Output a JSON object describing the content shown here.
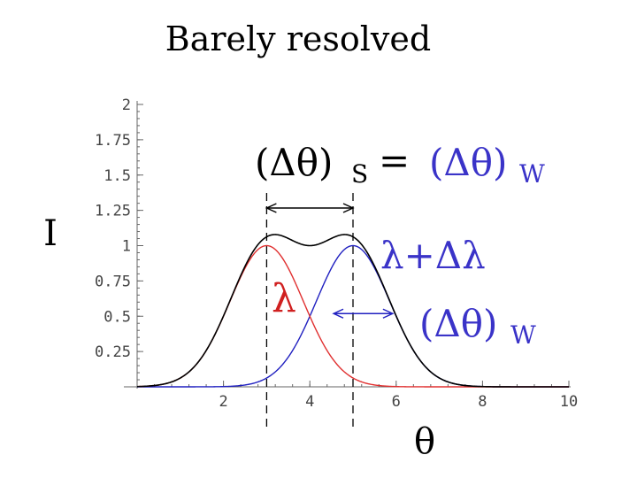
{
  "chart_data": {
    "type": "line",
    "title": "Barely resolved",
    "xlabel": "θ",
    "ylabel": "I",
    "xlim": [
      0,
      10
    ],
    "ylim": [
      0,
      2
    ],
    "x_ticks": [
      2,
      4,
      6,
      8,
      10
    ],
    "y_ticks": [
      0.25,
      0.5,
      0.75,
      1,
      1.25,
      1.5,
      1.75,
      2
    ],
    "y_tick_labels": [
      "0.25",
      "0.5",
      "0.75",
      "1",
      "1.25",
      "1.5",
      "1.75",
      "2"
    ],
    "x_tick_labels": [
      "2",
      "4",
      "6",
      "8",
      "10"
    ],
    "series": [
      {
        "label": "λ",
        "kind": "gaussian",
        "center": 3,
        "peak": 1,
        "half_width_at_half_max": 1
      },
      {
        "label": "λ+Δλ",
        "kind": "gaussian",
        "center": 5,
        "peak": 1,
        "half_width_at_half_max": 1
      },
      {
        "kind": "sum"
      }
    ],
    "dashed_verticals": [
      3,
      5
    ],
    "annotations": {
      "separation_left": "(Δθ)",
      "separation_sub": "S",
      "equals": "=",
      "separation_right": "(Δθ)",
      "separation_right_sub": "W",
      "width_label": "(Δθ)",
      "width_sub": "W"
    },
    "colors": {
      "series1": "#e03030",
      "series2": "#2020c0",
      "sum": "#000000",
      "annotation_blue": "#3a33c8",
      "annotation_red": "#d02020",
      "title": "#1a1a9c"
    }
  }
}
